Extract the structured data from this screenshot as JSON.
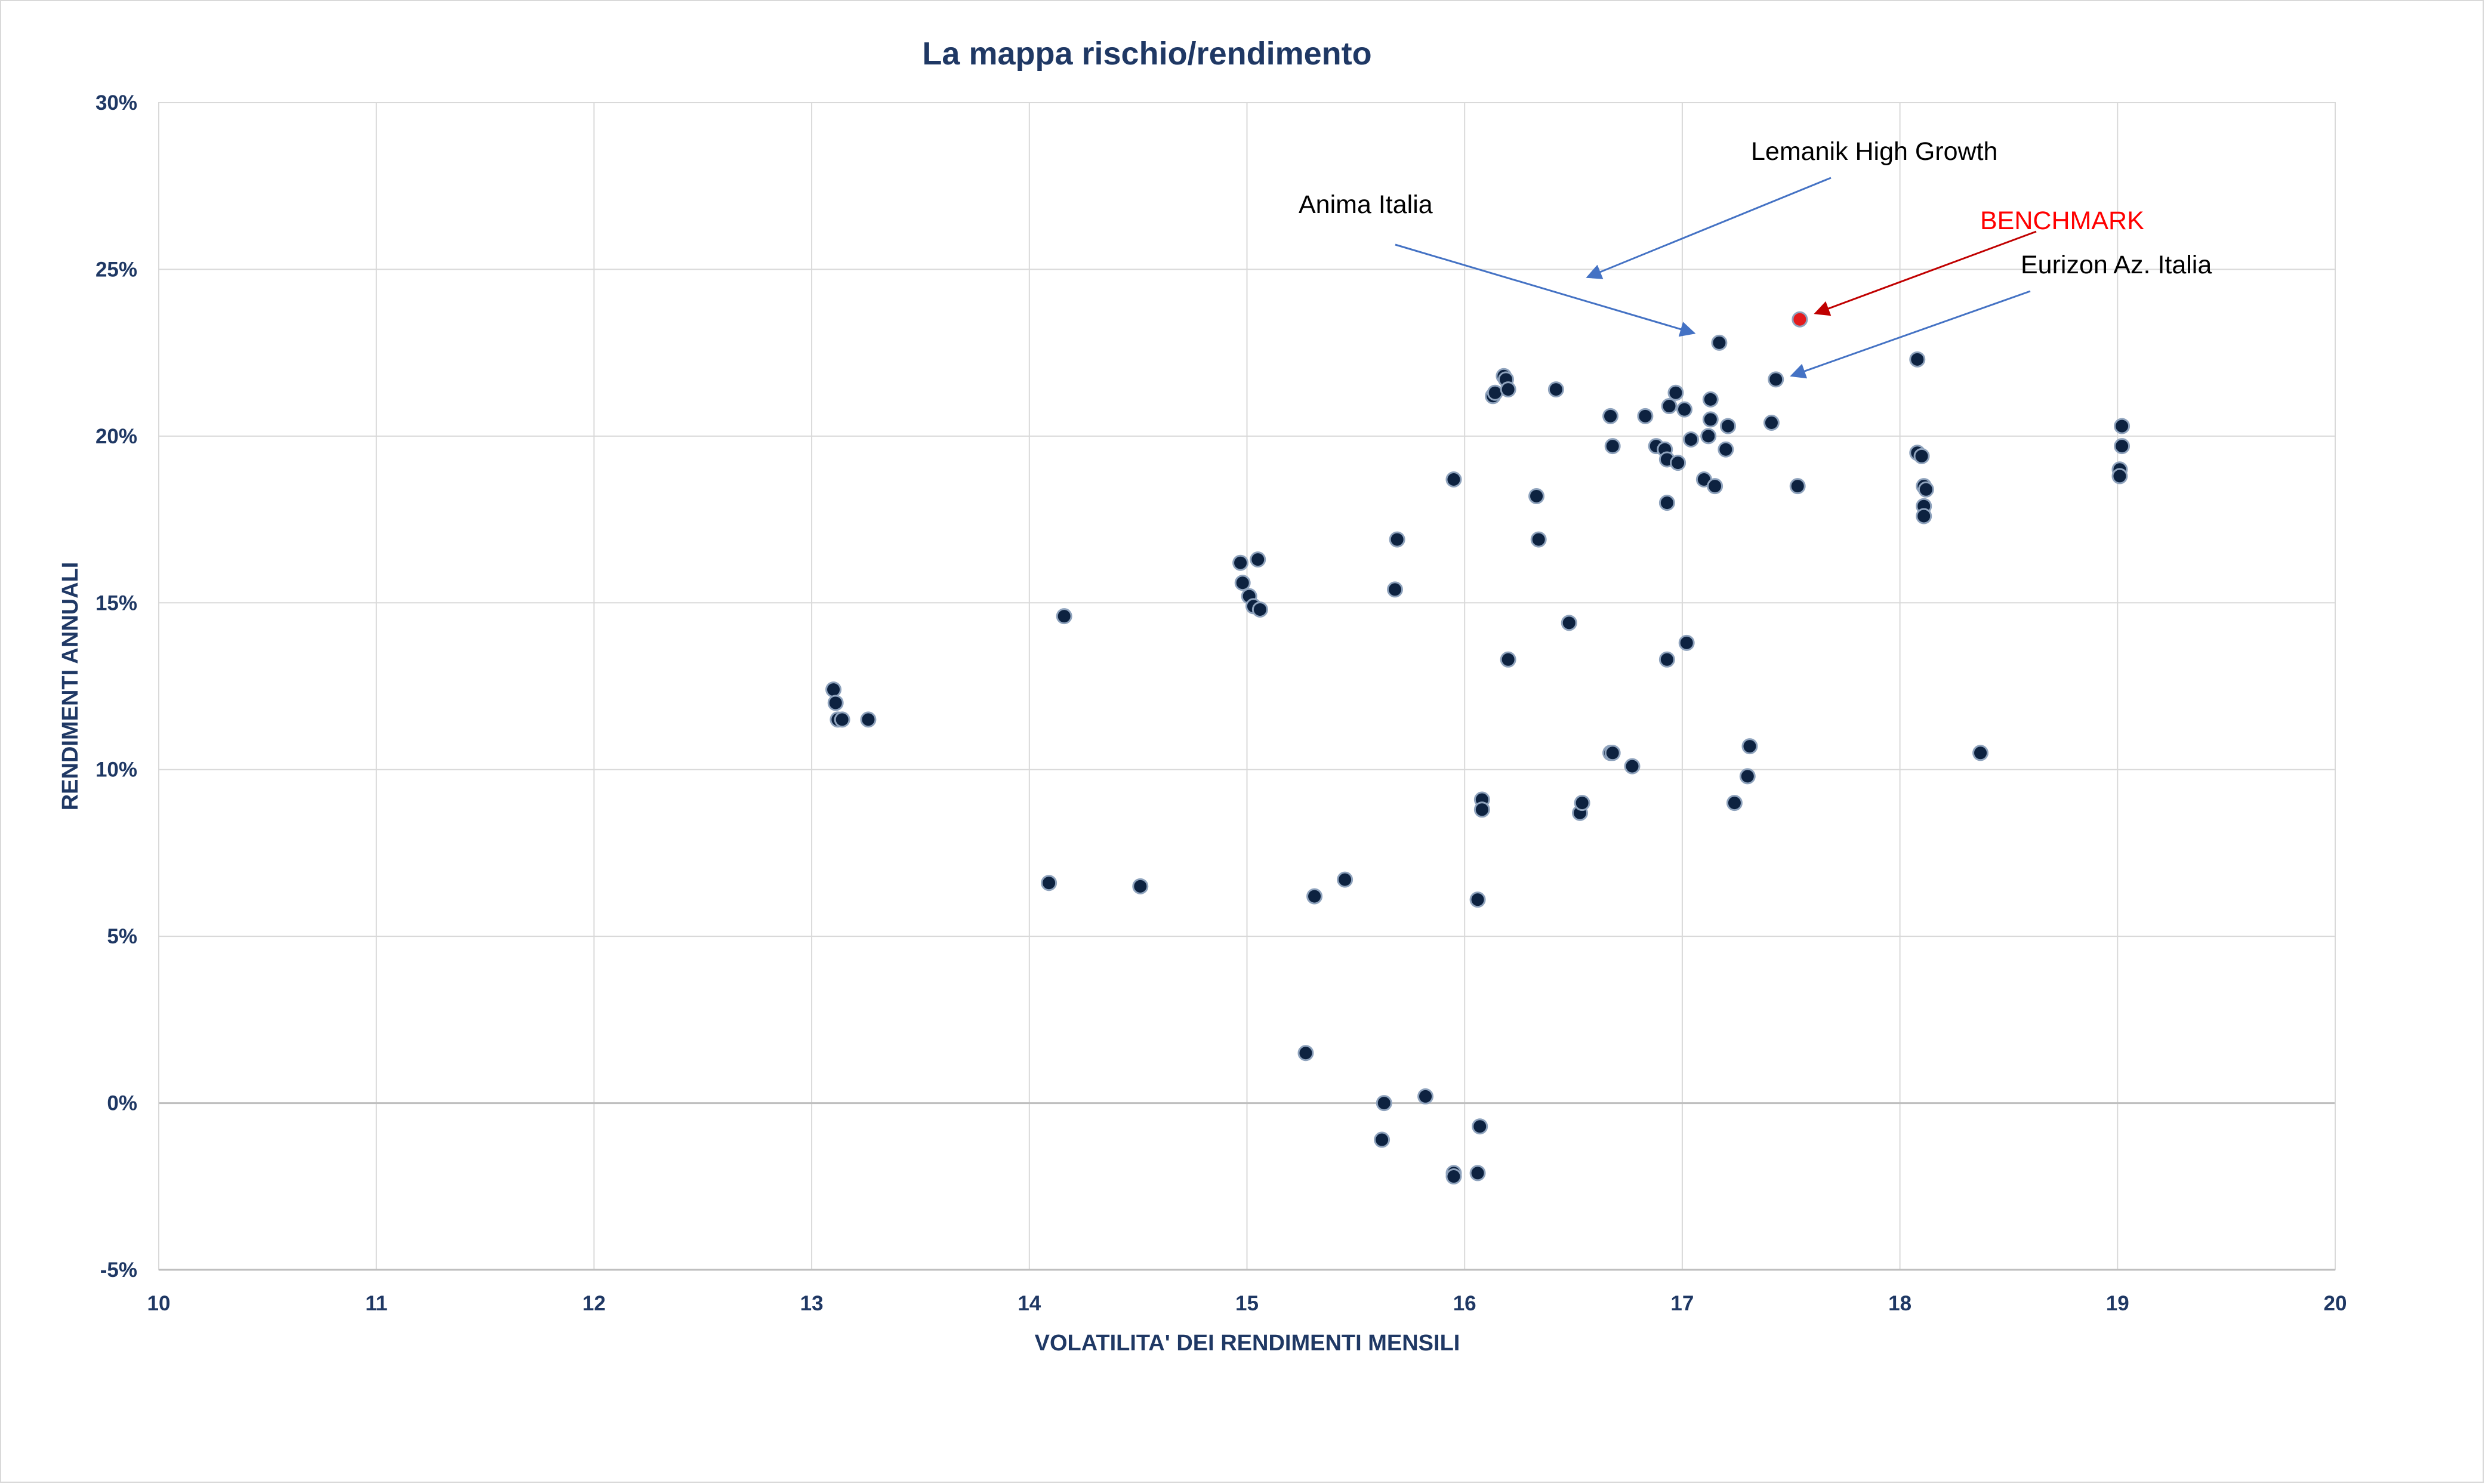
{
  "chart_data": {
    "type": "scatter",
    "title": "La mappa rischio/rendimento",
    "xlabel": "VOLATILITA' DEI RENDIMENTI MENSILI",
    "ylabel": "RENDIMENTI ANNUALI",
    "xlim": [
      10,
      20
    ],
    "ylim": [
      -5,
      30
    ],
    "x_ticks": [
      10,
      11,
      12,
      13,
      14,
      15,
      16,
      17,
      18,
      19,
      20
    ],
    "y_ticks": [
      -5,
      0,
      5,
      10,
      15,
      20,
      25,
      30
    ],
    "y_tick_labels": [
      "-5%",
      "0%",
      "5%",
      "10%",
      "15%",
      "20%",
      "25%",
      "30%"
    ],
    "grid": true,
    "colors": {
      "point_fill": "#0d2240",
      "point_stroke": "#8fa3bd",
      "benchmark_fill": "#e31a1c",
      "text": "#1f3864",
      "annotation_arrow": "#4472c4",
      "benchmark_arrow": "#c00000",
      "benchmark_text": "#ff0000",
      "grid": "#d9d9d9"
    },
    "series": [
      {
        "points": [
          [
            13.1,
            12.4
          ],
          [
            13.11,
            12.0
          ],
          [
            13.12,
            11.5
          ],
          [
            13.14,
            11.5
          ],
          [
            13.26,
            11.5
          ],
          [
            14.09,
            6.6
          ],
          [
            14.16,
            14.6
          ],
          [
            14.51,
            6.5
          ],
          [
            14.97,
            16.2
          ],
          [
            14.98,
            15.6
          ],
          [
            15.01,
            15.2
          ],
          [
            15.03,
            14.9
          ],
          [
            15.06,
            14.8
          ],
          [
            15.05,
            16.3
          ],
          [
            15.27,
            1.5
          ],
          [
            15.31,
            6.2
          ],
          [
            15.45,
            6.7
          ],
          [
            15.62,
            -1.1
          ],
          [
            15.63,
            0.0
          ],
          [
            15.68,
            15.4
          ],
          [
            15.69,
            16.9
          ],
          [
            15.82,
            0.2
          ],
          [
            15.95,
            18.7
          ],
          [
            15.95,
            -2.1
          ],
          [
            15.95,
            -2.2
          ],
          [
            16.06,
            6.1
          ],
          [
            16.07,
            -0.7
          ],
          [
            16.06,
            -2.1
          ],
          [
            16.08,
            9.1
          ],
          [
            16.08,
            8.8
          ],
          [
            16.13,
            21.2
          ],
          [
            16.14,
            21.3
          ],
          [
            16.18,
            21.8
          ],
          [
            16.19,
            21.7
          ],
          [
            16.2,
            21.4
          ],
          [
            16.2,
            13.3
          ],
          [
            16.33,
            18.2
          ],
          [
            16.34,
            16.9
          ],
          [
            16.42,
            21.4
          ],
          [
            16.48,
            14.4
          ],
          [
            16.53,
            8.7
          ],
          [
            16.54,
            9.0
          ],
          [
            16.67,
            20.6
          ],
          [
            16.68,
            19.7
          ],
          [
            16.67,
            10.5
          ],
          [
            16.68,
            10.5
          ],
          [
            16.77,
            10.1
          ],
          [
            16.83,
            20.6
          ],
          [
            16.88,
            19.7
          ],
          [
            16.92,
            19.6
          ],
          [
            16.93,
            19.3
          ],
          [
            16.93,
            18.0
          ],
          [
            16.93,
            13.3
          ],
          [
            16.94,
            20.9
          ],
          [
            16.97,
            21.3
          ],
          [
            16.98,
            19.2
          ],
          [
            17.01,
            20.8
          ],
          [
            17.02,
            13.8
          ],
          [
            17.04,
            19.9
          ],
          [
            17.1,
            18.7
          ],
          [
            17.12,
            20.0
          ],
          [
            17.13,
            21.1
          ],
          [
            17.13,
            20.5
          ],
          [
            17.15,
            18.5
          ],
          [
            17.17,
            22.8
          ],
          [
            17.2,
            19.6
          ],
          [
            17.21,
            20.3
          ],
          [
            17.24,
            9.0
          ],
          [
            17.3,
            9.8
          ],
          [
            17.31,
            10.7
          ],
          [
            17.41,
            20.4
          ],
          [
            17.43,
            21.7
          ],
          [
            17.53,
            18.5
          ],
          [
            18.08,
            22.3
          ],
          [
            18.08,
            19.5
          ],
          [
            18.1,
            19.4
          ],
          [
            18.11,
            18.5
          ],
          [
            18.12,
            18.4
          ],
          [
            18.11,
            17.9
          ],
          [
            18.11,
            17.6
          ],
          [
            18.37,
            10.5
          ],
          [
            19.01,
            19.0
          ],
          [
            19.01,
            18.8
          ],
          [
            19.02,
            19.7
          ],
          [
            19.02,
            20.3
          ]
        ]
      },
      {
        "name": "BENCHMARK",
        "points": [
          [
            17.54,
            23.5
          ]
        ]
      }
    ],
    "annotations": [
      {
        "text": "Lemanik High Growth",
        "x": 16.52,
        "y": 24.8
      },
      {
        "text": "Anima Italia",
        "x": 17.17,
        "y": 22.8
      },
      {
        "text": "BENCHMARK",
        "x": 17.54,
        "y": 23.5
      },
      {
        "text": "Eurizon Az. Italia",
        "x": 17.43,
        "y": 21.7
      }
    ]
  }
}
